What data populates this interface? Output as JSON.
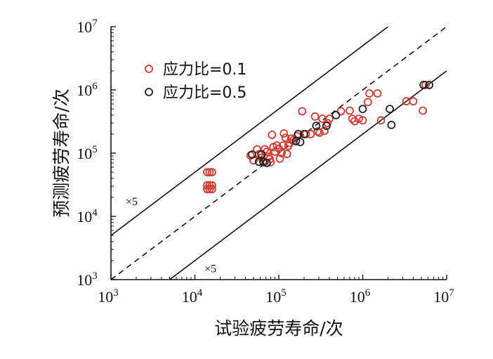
{
  "chart_data": {
    "type": "scatter",
    "title": "",
    "xlabel": "试验疲劳寿命/次",
    "ylabel": "预测疲劳寿命/次",
    "xscale": "log",
    "yscale": "log",
    "xlim": [
      1000,
      10000000
    ],
    "ylim": [
      1000,
      10000000
    ],
    "tick_base": "10",
    "x_tick_exponents": [
      "3",
      "4",
      "5",
      "6",
      "7"
    ],
    "y_tick_exponents": [
      "3",
      "4",
      "5",
      "6",
      "7"
    ],
    "legend_position": "top-left",
    "reference_lines": [
      {
        "kind": "upper-bound",
        "factor": 5,
        "style": "solid",
        "label": "×5"
      },
      {
        "kind": "perfect-agreement",
        "factor": 1,
        "style": "dashed"
      },
      {
        "kind": "lower-bound",
        "factor": 0.2,
        "style": "solid",
        "label": "×5"
      }
    ],
    "series": [
      {
        "name": "应力比=0.1",
        "color": "#d8382f",
        "marker": "open-circle",
        "points": [
          [
            14000,
            50000
          ],
          [
            15000,
            50000
          ],
          [
            16000,
            50000
          ],
          [
            14000,
            31000
          ],
          [
            15000,
            31000
          ],
          [
            16000,
            31000
          ],
          [
            14000,
            27000
          ],
          [
            15000,
            27000
          ],
          [
            16000,
            27000
          ],
          [
            46000,
            92000
          ],
          [
            50000,
            77000
          ],
          [
            55000,
            115000
          ],
          [
            58000,
            96000
          ],
          [
            62000,
            85000
          ],
          [
            65000,
            75000
          ],
          [
            68000,
            115000
          ],
          [
            72000,
            105000
          ],
          [
            75000,
            88000
          ],
          [
            78000,
            80000
          ],
          [
            80000,
            72000
          ],
          [
            83000,
            195000
          ],
          [
            86000,
            125000
          ],
          [
            90000,
            105000
          ],
          [
            95000,
            132000
          ],
          [
            100000,
            118000
          ],
          [
            103000,
            82000
          ],
          [
            108000,
            100000
          ],
          [
            112000,
            132000
          ],
          [
            115000,
            205000
          ],
          [
            120000,
            175000
          ],
          [
            125000,
            97000
          ],
          [
            130000,
            130000
          ],
          [
            135000,
            145000
          ],
          [
            140000,
            170000
          ],
          [
            150000,
            160000
          ],
          [
            165000,
            185000
          ],
          [
            190000,
            460000
          ],
          [
            210000,
            200000
          ],
          [
            240000,
            200000
          ],
          [
            270000,
            380000
          ],
          [
            290000,
            220000
          ],
          [
            305000,
            210000
          ],
          [
            330000,
            350000
          ],
          [
            350000,
            225000
          ],
          [
            380000,
            300000
          ],
          [
            400000,
            350000
          ],
          [
            550000,
            460000
          ],
          [
            700000,
            470000
          ],
          [
            750000,
            350000
          ],
          [
            800000,
            320000
          ],
          [
            900000,
            350000
          ],
          [
            1000000,
            330000
          ],
          [
            1150000,
            640000
          ],
          [
            1200000,
            880000
          ],
          [
            1500000,
            880000
          ],
          [
            1650000,
            330000
          ],
          [
            3300000,
            660000
          ],
          [
            4000000,
            660000
          ],
          [
            5200000,
            470000
          ],
          [
            5600000,
            1200000
          ]
        ]
      },
      {
        "name": "应力比=0.5",
        "color": "#222222",
        "marker": "open-circle",
        "points": [
          [
            48000,
            95000
          ],
          [
            58000,
            73000
          ],
          [
            62000,
            96000
          ],
          [
            66000,
            72000
          ],
          [
            72000,
            70000
          ],
          [
            160000,
            155000
          ],
          [
            170000,
            200000
          ],
          [
            180000,
            150000
          ],
          [
            200000,
            200000
          ],
          [
            280000,
            270000
          ],
          [
            370000,
            270000
          ],
          [
            480000,
            400000
          ],
          [
            1000000,
            500000
          ],
          [
            2100000,
            500000
          ],
          [
            2200000,
            280000
          ],
          [
            5300000,
            1200000
          ],
          [
            6200000,
            1200000
          ]
        ]
      }
    ]
  }
}
